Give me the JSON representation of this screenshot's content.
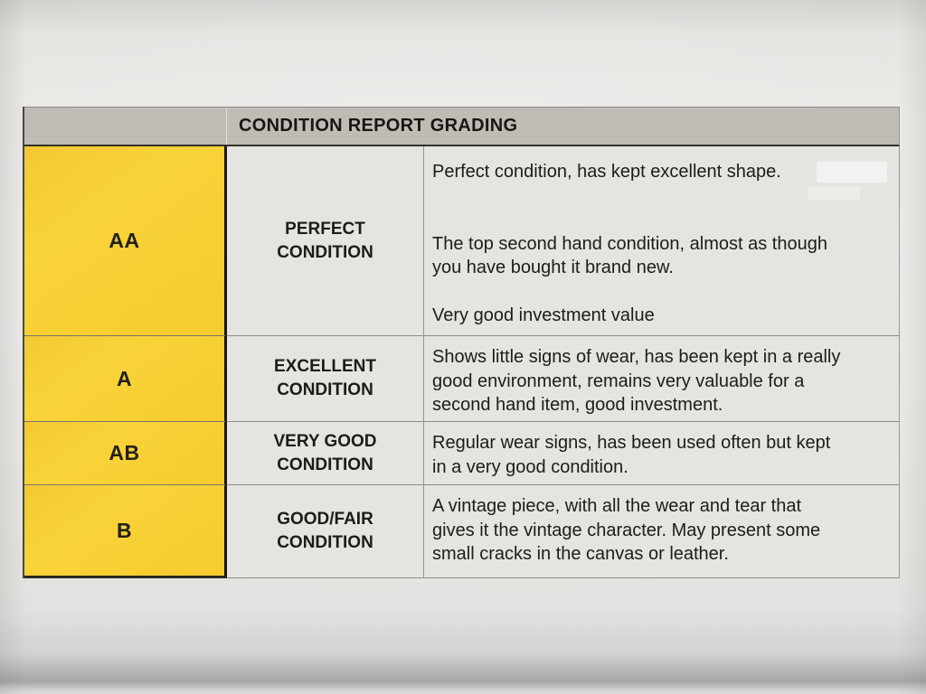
{
  "photo": {
    "paper_color": "#e9e7e4",
    "header_bg": "#c0bcb5",
    "grade_cell_bg": "#f7cf33",
    "body_cell_bg": "#e6e4e1",
    "text_color": "#1e1c19"
  },
  "table": {
    "title": "CONDITION REPORT GRADING",
    "rows": [
      {
        "grade": "AA",
        "label": "PERFECT\nCONDITION",
        "description": "Perfect condition, has kept excellent shape.\n\n\nThe top second hand condition, almost as though\nyou have bought it brand new.\n\nVery good investment value"
      },
      {
        "grade": "A",
        "label": "EXCELLENT\nCONDITION",
        "description": "Shows little signs of wear, has been kept in a really\ngood environment, remains very valuable for a\nsecond hand item, good investment."
      },
      {
        "grade": "AB",
        "label": "VERY GOOD\nCONDITION",
        "description": "Regular wear signs, has been used often but kept\nin a very good condition."
      },
      {
        "grade": "B",
        "label": "GOOD/FAIR\nCONDITION",
        "description": "A vintage piece, with all the wear and tear that\ngives it the vintage character. May present some\nsmall cracks in the canvas or leather."
      }
    ]
  }
}
